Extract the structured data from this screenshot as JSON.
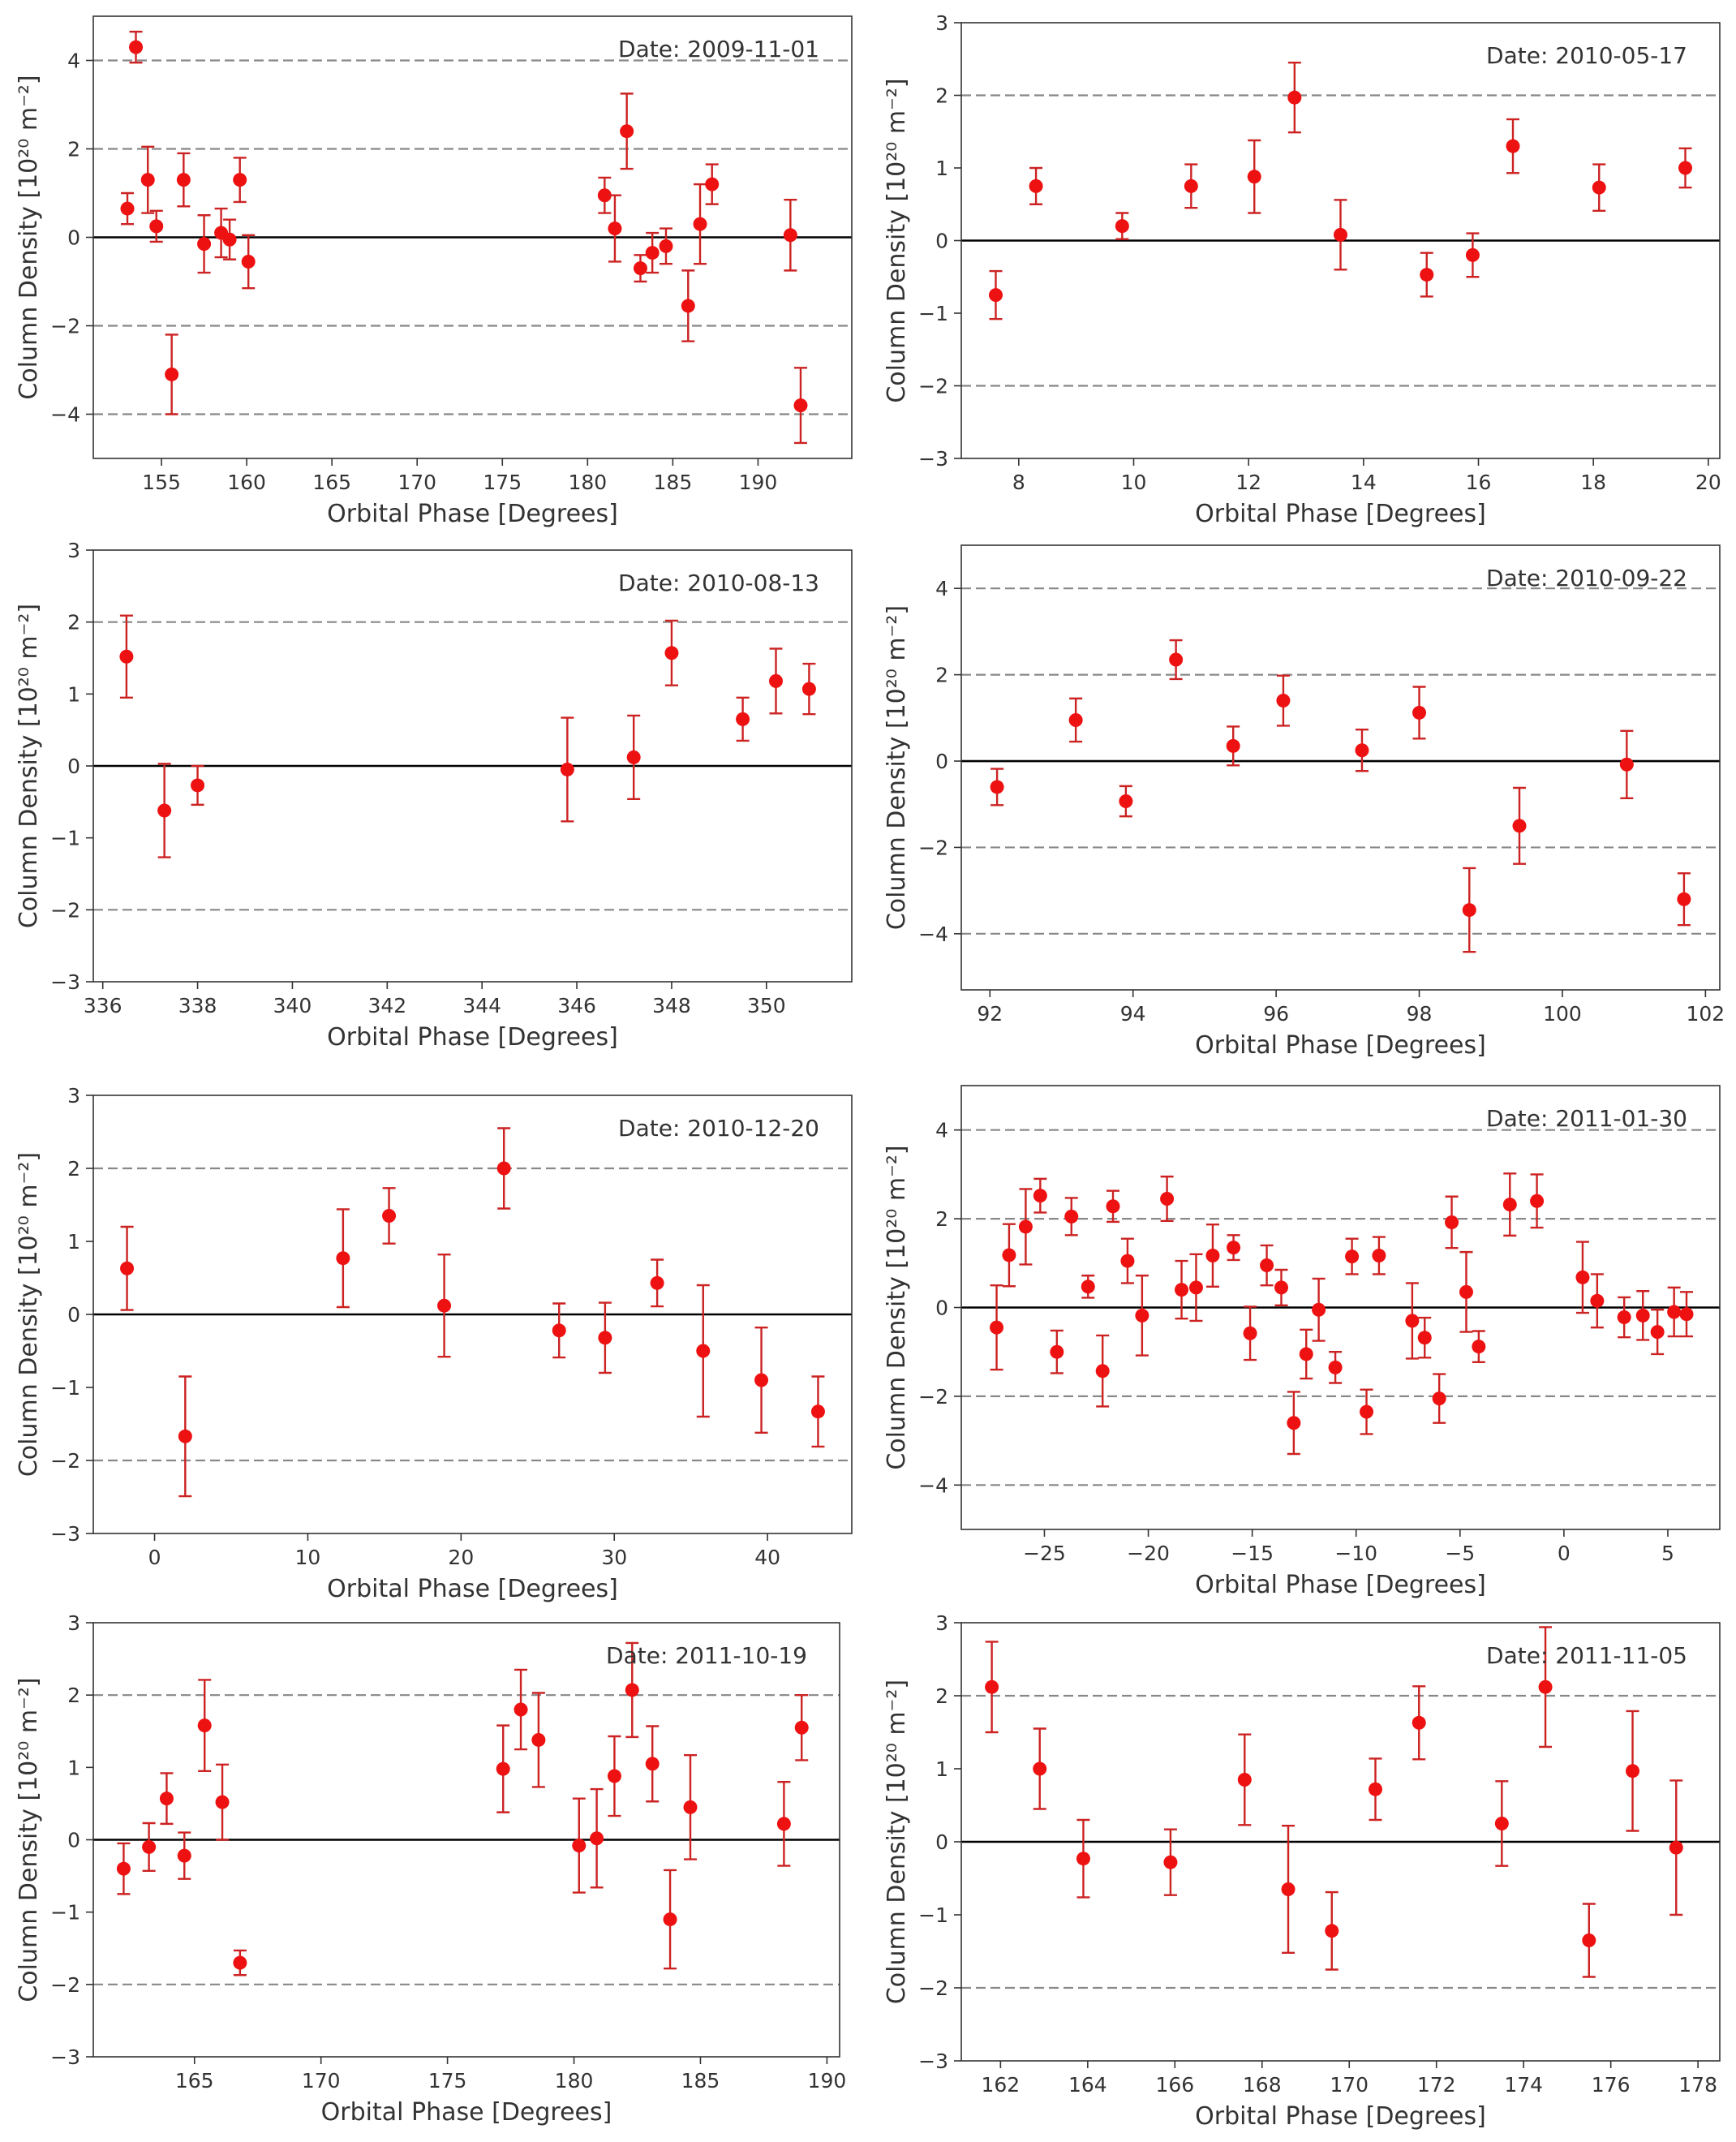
{
  "figure": {
    "marker_color": "#ee1111",
    "errorbar_color": "#cc2222",
    "zero_line_color": "#000000",
    "threshold_line_color": "#888888"
  },
  "chart_data": [
    {
      "type": "scatter",
      "subtype": "errorbar",
      "annotation": "Date: 2009-11-01",
      "xlabel": "Orbital Phase [Degrees]",
      "ylabel": "Column Density [10²⁰ m⁻²]",
      "xlim": [
        151.0,
        195.5
      ],
      "ylim": [
        -5.0,
        5.0
      ],
      "xticks": [
        155,
        160,
        165,
        170,
        175,
        180,
        185,
        190
      ],
      "yticks": [
        -4,
        -2,
        0,
        2,
        4
      ],
      "dashed_lines": [
        -4,
        -2,
        2,
        4
      ],
      "points": [
        {
          "x": 153.0,
          "y": 0.65,
          "err": 0.35
        },
        {
          "x": 153.5,
          "y": 4.3,
          "err": 0.35
        },
        {
          "x": 154.2,
          "y": 1.3,
          "err": 0.75
        },
        {
          "x": 154.7,
          "y": 0.25,
          "err": 0.35
        },
        {
          "x": 155.6,
          "y": -3.1,
          "err": 0.9
        },
        {
          "x": 156.3,
          "y": 1.3,
          "err": 0.6
        },
        {
          "x": 157.5,
          "y": -0.15,
          "err": 0.65
        },
        {
          "x": 158.5,
          "y": 0.1,
          "err": 0.55
        },
        {
          "x": 159.0,
          "y": -0.05,
          "err": 0.45
        },
        {
          "x": 159.6,
          "y": 1.3,
          "err": 0.5
        },
        {
          "x": 160.1,
          "y": -0.55,
          "err": 0.6
        },
        {
          "x": 181.0,
          "y": 0.95,
          "err": 0.4
        },
        {
          "x": 181.6,
          "y": 0.2,
          "err": 0.75
        },
        {
          "x": 182.3,
          "y": 2.4,
          "err": 0.85
        },
        {
          "x": 183.1,
          "y": -0.7,
          "err": 0.3
        },
        {
          "x": 183.8,
          "y": -0.35,
          "err": 0.45
        },
        {
          "x": 184.6,
          "y": -0.2,
          "err": 0.4
        },
        {
          "x": 185.9,
          "y": -1.55,
          "err": 0.8
        },
        {
          "x": 186.6,
          "y": 0.3,
          "err": 0.9
        },
        {
          "x": 187.3,
          "y": 1.2,
          "err": 0.45
        },
        {
          "x": 191.9,
          "y": 0.05,
          "err": 0.8
        },
        {
          "x": 192.5,
          "y": -3.8,
          "err": 0.85
        }
      ]
    },
    {
      "type": "scatter",
      "subtype": "errorbar",
      "annotation": "Date: 2010-05-17",
      "xlabel": "Orbital Phase [Degrees]",
      "ylabel": "Column Density [10²⁰ m⁻²]",
      "xlim": [
        7.0,
        20.2
      ],
      "ylim": [
        -3.0,
        3.0
      ],
      "xticks": [
        8,
        10,
        12,
        14,
        16,
        18,
        20
      ],
      "yticks": [
        -3,
        -2,
        -1,
        0,
        1,
        2,
        3
      ],
      "dashed_lines": [
        -2,
        2
      ],
      "points": [
        {
          "x": 7.6,
          "y": -0.75,
          "err": 0.33
        },
        {
          "x": 8.3,
          "y": 0.75,
          "err": 0.25
        },
        {
          "x": 9.8,
          "y": 0.2,
          "err": 0.18
        },
        {
          "x": 11.0,
          "y": 0.75,
          "err": 0.3
        },
        {
          "x": 12.1,
          "y": 0.88,
          "err": 0.5
        },
        {
          "x": 12.8,
          "y": 1.97,
          "err": 0.48
        },
        {
          "x": 13.6,
          "y": 0.08,
          "err": 0.48
        },
        {
          "x": 15.1,
          "y": -0.47,
          "err": 0.3
        },
        {
          "x": 15.9,
          "y": -0.2,
          "err": 0.3
        },
        {
          "x": 16.6,
          "y": 1.3,
          "err": 0.37
        },
        {
          "x": 18.1,
          "y": 0.73,
          "err": 0.32
        },
        {
          "x": 19.6,
          "y": 1.0,
          "err": 0.27
        }
      ]
    },
    {
      "type": "scatter",
      "subtype": "errorbar",
      "annotation": "Date: 2010-08-13",
      "xlabel": "Orbital Phase [Degrees]",
      "ylabel": "Column Density [10²⁰ m⁻²]",
      "xlim": [
        335.8,
        351.8
      ],
      "ylim": [
        -3.0,
        3.0
      ],
      "xticks": [
        336,
        338,
        340,
        342,
        344,
        346,
        348,
        350
      ],
      "yticks": [
        -3,
        -2,
        -1,
        0,
        1,
        2,
        3
      ],
      "dashed_lines": [
        -2,
        2
      ],
      "points": [
        {
          "x": 336.5,
          "y": 1.52,
          "err": 0.57
        },
        {
          "x": 337.3,
          "y": -0.62,
          "err": 0.65
        },
        {
          "x": 338.0,
          "y": -0.27,
          "err": 0.27
        },
        {
          "x": 345.8,
          "y": -0.05,
          "err": 0.72
        },
        {
          "x": 347.2,
          "y": 0.12,
          "err": 0.58
        },
        {
          "x": 348.0,
          "y": 1.57,
          "err": 0.45
        },
        {
          "x": 349.5,
          "y": 0.65,
          "err": 0.3
        },
        {
          "x": 350.2,
          "y": 1.18,
          "err": 0.45
        },
        {
          "x": 350.9,
          "y": 1.07,
          "err": 0.35
        }
      ]
    },
    {
      "type": "scatter",
      "subtype": "errorbar",
      "annotation": "Date: 2010-09-22",
      "xlabel": "Orbital Phase [Degrees]",
      "ylabel": "Column Density [10²⁰ m⁻²]",
      "xlim": [
        91.6,
        102.2
      ],
      "ylim": [
        -5.3,
        5.0
      ],
      "xticks": [
        92,
        94,
        96,
        98,
        100,
        102
      ],
      "yticks": [
        -4,
        -2,
        0,
        2,
        4
      ],
      "dashed_lines": [
        -4,
        -2,
        2,
        4
      ],
      "points": [
        {
          "x": 92.1,
          "y": -0.6,
          "err": 0.42
        },
        {
          "x": 93.2,
          "y": 0.95,
          "err": 0.5
        },
        {
          "x": 93.9,
          "y": -0.93,
          "err": 0.35
        },
        {
          "x": 94.6,
          "y": 2.35,
          "err": 0.45
        },
        {
          "x": 95.4,
          "y": 0.35,
          "err": 0.45
        },
        {
          "x": 96.1,
          "y": 1.4,
          "err": 0.58
        },
        {
          "x": 97.2,
          "y": 0.25,
          "err": 0.48
        },
        {
          "x": 98.0,
          "y": 1.12,
          "err": 0.6
        },
        {
          "x": 98.7,
          "y": -3.45,
          "err": 0.97
        },
        {
          "x": 99.4,
          "y": -1.5,
          "err": 0.88
        },
        {
          "x": 100.9,
          "y": -0.08,
          "err": 0.78
        },
        {
          "x": 101.7,
          "y": -3.2,
          "err": 0.6
        }
      ]
    },
    {
      "type": "scatter",
      "subtype": "errorbar",
      "annotation": "Date: 2010-12-20",
      "xlabel": "Orbital Phase [Degrees]",
      "ylabel": "Column Density [10²⁰ m⁻²]",
      "xlim": [
        -4.0,
        45.5
      ],
      "ylim": [
        -3.0,
        3.0
      ],
      "xticks": [
        0,
        10,
        20,
        30,
        40
      ],
      "yticks": [
        -3,
        -2,
        -1,
        0,
        1,
        2,
        3
      ],
      "dashed_lines": [
        -2,
        2
      ],
      "points": [
        {
          "x": -1.8,
          "y": 0.63,
          "err": 0.57
        },
        {
          "x": 2.0,
          "y": -1.67,
          "err": 0.82
        },
        {
          "x": 12.3,
          "y": 0.77,
          "err": 0.67
        },
        {
          "x": 15.3,
          "y": 1.35,
          "err": 0.38
        },
        {
          "x": 18.9,
          "y": 0.12,
          "err": 0.7
        },
        {
          "x": 22.8,
          "y": 2.0,
          "err": 0.55
        },
        {
          "x": 26.4,
          "y": -0.22,
          "err": 0.37
        },
        {
          "x": 29.4,
          "y": -0.32,
          "err": 0.48
        },
        {
          "x": 32.8,
          "y": 0.43,
          "err": 0.32
        },
        {
          "x": 35.8,
          "y": -0.5,
          "err": 0.9
        },
        {
          "x": 39.6,
          "y": -0.9,
          "err": 0.72
        },
        {
          "x": 43.3,
          "y": -1.33,
          "err": 0.48
        }
      ]
    },
    {
      "type": "scatter",
      "subtype": "errorbar",
      "annotation": "Date: 2011-01-30",
      "xlabel": "Orbital Phase [Degrees]",
      "ylabel": "Column Density [10²⁰ m⁻²]",
      "xlim": [
        -29.0,
        7.5
      ],
      "ylim": [
        -5.0,
        5.0
      ],
      "xticks": [
        -25,
        -20,
        -15,
        -10,
        -5,
        0,
        5
      ],
      "yticks": [
        -4,
        -2,
        0,
        2,
        4
      ],
      "dashed_lines": [
        -4,
        -2,
        2,
        4
      ],
      "points": [
        {
          "x": -27.3,
          "y": -0.45,
          "err": 0.95
        },
        {
          "x": -26.7,
          "y": 1.18,
          "err": 0.7
        },
        {
          "x": -25.9,
          "y": 1.82,
          "err": 0.85
        },
        {
          "x": -25.2,
          "y": 2.52,
          "err": 0.38
        },
        {
          "x": -24.4,
          "y": -1.0,
          "err": 0.48
        },
        {
          "x": -23.7,
          "y": 2.05,
          "err": 0.42
        },
        {
          "x": -22.9,
          "y": 0.47,
          "err": 0.25
        },
        {
          "x": -22.2,
          "y": -1.43,
          "err": 0.8
        },
        {
          "x": -21.7,
          "y": 2.28,
          "err": 0.35
        },
        {
          "x": -21.0,
          "y": 1.05,
          "err": 0.5
        },
        {
          "x": -20.3,
          "y": -0.18,
          "err": 0.9
        },
        {
          "x": -19.1,
          "y": 2.45,
          "err": 0.5
        },
        {
          "x": -18.4,
          "y": 0.4,
          "err": 0.65
        },
        {
          "x": -17.7,
          "y": 0.45,
          "err": 0.75
        },
        {
          "x": -16.9,
          "y": 1.17,
          "err": 0.7
        },
        {
          "x": -15.9,
          "y": 1.35,
          "err": 0.28
        },
        {
          "x": -15.1,
          "y": -0.58,
          "err": 0.6
        },
        {
          "x": -14.3,
          "y": 0.95,
          "err": 0.45
        },
        {
          "x": -13.6,
          "y": 0.45,
          "err": 0.4
        },
        {
          "x": -13.0,
          "y": -2.6,
          "err": 0.7
        },
        {
          "x": -12.4,
          "y": -1.05,
          "err": 0.55
        },
        {
          "x": -11.8,
          "y": -0.05,
          "err": 0.7
        },
        {
          "x": -11.0,
          "y": -1.35,
          "err": 0.35
        },
        {
          "x": -10.2,
          "y": 1.15,
          "err": 0.4
        },
        {
          "x": -9.5,
          "y": -2.35,
          "err": 0.5
        },
        {
          "x": -8.9,
          "y": 1.17,
          "err": 0.42
        },
        {
          "x": -7.3,
          "y": -0.3,
          "err": 0.85
        },
        {
          "x": -6.7,
          "y": -0.68,
          "err": 0.45
        },
        {
          "x": -6.0,
          "y": -2.05,
          "err": 0.55
        },
        {
          "x": -5.4,
          "y": 1.92,
          "err": 0.58
        },
        {
          "x": -4.7,
          "y": 0.35,
          "err": 0.9
        },
        {
          "x": -4.1,
          "y": -0.88,
          "err": 0.35
        },
        {
          "x": -2.6,
          "y": 2.32,
          "err": 0.7
        },
        {
          "x": -1.3,
          "y": 2.4,
          "err": 0.6
        },
        {
          "x": 0.9,
          "y": 0.68,
          "err": 0.8
        },
        {
          "x": 1.6,
          "y": 0.15,
          "err": 0.6
        },
        {
          "x": 2.9,
          "y": -0.22,
          "err": 0.45
        },
        {
          "x": 3.8,
          "y": -0.18,
          "err": 0.55
        },
        {
          "x": 4.5,
          "y": -0.55,
          "err": 0.5
        },
        {
          "x": 5.3,
          "y": -0.1,
          "err": 0.55
        },
        {
          "x": 5.9,
          "y": -0.15,
          "err": 0.5
        }
      ]
    },
    {
      "type": "scatter",
      "subtype": "errorbar",
      "annotation": "Date: 2011-10-19",
      "xlabel": "Orbital Phase [Degrees]",
      "ylabel": "Column Density [10²⁰ m⁻²]",
      "xlim": [
        161.0,
        190.5
      ],
      "ylim": [
        -3.0,
        3.0
      ],
      "xticks": [
        165,
        170,
        175,
        180,
        185,
        190
      ],
      "yticks": [
        -3,
        -2,
        -1,
        0,
        1,
        2,
        3
      ],
      "dashed_lines": [
        -2,
        2
      ],
      "points": [
        {
          "x": 162.2,
          "y": -0.4,
          "err": 0.35
        },
        {
          "x": 163.2,
          "y": -0.1,
          "err": 0.33
        },
        {
          "x": 163.9,
          "y": 0.57,
          "err": 0.35
        },
        {
          "x": 164.6,
          "y": -0.22,
          "err": 0.32
        },
        {
          "x": 165.4,
          "y": 1.58,
          "err": 0.63
        },
        {
          "x": 166.1,
          "y": 0.52,
          "err": 0.52
        },
        {
          "x": 166.8,
          "y": -1.7,
          "err": 0.17
        },
        {
          "x": 177.2,
          "y": 0.98,
          "err": 0.6
        },
        {
          "x": 177.9,
          "y": 1.8,
          "err": 0.55
        },
        {
          "x": 178.6,
          "y": 1.38,
          "err": 0.65
        },
        {
          "x": 180.2,
          "y": -0.08,
          "err": 0.65
        },
        {
          "x": 180.9,
          "y": 0.02,
          "err": 0.68
        },
        {
          "x": 181.6,
          "y": 0.88,
          "err": 0.55
        },
        {
          "x": 182.3,
          "y": 2.07,
          "err": 0.65
        },
        {
          "x": 183.1,
          "y": 1.05,
          "err": 0.52
        },
        {
          "x": 183.8,
          "y": -1.1,
          "err": 0.68
        },
        {
          "x": 184.6,
          "y": 0.45,
          "err": 0.72
        },
        {
          "x": 188.3,
          "y": 0.22,
          "err": 0.58
        },
        {
          "x": 189.0,
          "y": 1.55,
          "err": 0.45
        }
      ]
    },
    {
      "type": "scatter",
      "subtype": "errorbar",
      "annotation": "Date: 2011-11-05",
      "xlabel": "Orbital Phase [Degrees]",
      "ylabel": "Column Density [10²⁰ m⁻²]",
      "xlim": [
        161.1,
        178.5
      ],
      "ylim": [
        -3.0,
        3.0
      ],
      "xticks": [
        162,
        164,
        166,
        168,
        170,
        172,
        174,
        176,
        178
      ],
      "yticks": [
        -3,
        -2,
        -1,
        0,
        1,
        2,
        3
      ],
      "dashed_lines": [
        -2,
        2
      ],
      "points": [
        {
          "x": 161.8,
          "y": 2.12,
          "err": 0.62
        },
        {
          "x": 162.9,
          "y": 1.0,
          "err": 0.55
        },
        {
          "x": 163.9,
          "y": -0.23,
          "err": 0.53
        },
        {
          "x": 165.9,
          "y": -0.28,
          "err": 0.45
        },
        {
          "x": 167.6,
          "y": 0.85,
          "err": 0.62
        },
        {
          "x": 168.6,
          "y": -0.65,
          "err": 0.87
        },
        {
          "x": 169.6,
          "y": -1.22,
          "err": 0.53
        },
        {
          "x": 170.6,
          "y": 0.72,
          "err": 0.42
        },
        {
          "x": 171.6,
          "y": 1.63,
          "err": 0.5
        },
        {
          "x": 173.5,
          "y": 0.25,
          "err": 0.58
        },
        {
          "x": 174.5,
          "y": 2.12,
          "err": 0.82
        },
        {
          "x": 175.5,
          "y": -1.35,
          "err": 0.5
        },
        {
          "x": 176.5,
          "y": 0.97,
          "err": 0.82
        },
        {
          "x": 177.5,
          "y": -0.08,
          "err": 0.92
        }
      ]
    }
  ]
}
